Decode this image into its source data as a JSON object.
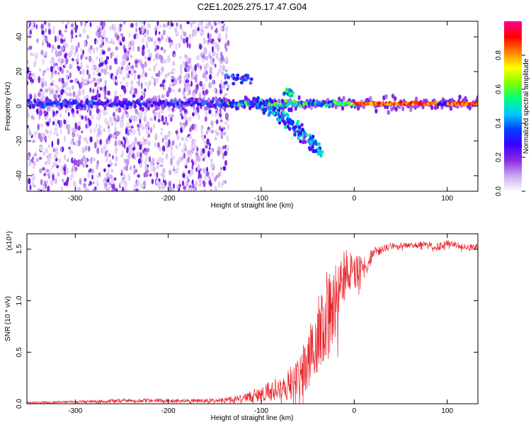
{
  "title": "C2E1.2025.275.17.47.G04",
  "chart_data": [
    {
      "type": "heatmap",
      "panel": "spectrogram",
      "xlabel": "Height of straight line (km)",
      "ylabel": "Frequency (Hz)",
      "xlim": [
        -352,
        133
      ],
      "ylim": [
        -49,
        49
      ],
      "xticks": [
        -300,
        -200,
        -100,
        0,
        100
      ],
      "xtick_labels": [
        "-300",
        "-200",
        "-100",
        "0",
        "100"
      ],
      "yticks": [
        -40,
        -20,
        0,
        20,
        40
      ],
      "ytick_labels": [
        "-40",
        "-20",
        "0",
        "20",
        "40"
      ],
      "colorbar": {
        "label": "Normalized spectral amplitude",
        "range": [
          0,
          1
        ],
        "ticks": [
          0.0,
          0.2,
          0.4,
          0.6,
          0.8
        ],
        "tick_labels": [
          "0.0",
          "0.2",
          "0.4",
          "0.6",
          "0.8"
        ],
        "colormap": [
          "#ffffff",
          "#c9a8f0",
          "#8a2be2",
          "#3b00ff",
          "#0040ff",
          "#00c8ff",
          "#00ff80",
          "#80ff00",
          "#ffff00",
          "#ff8000",
          "#ff0000",
          "#ff0090"
        ]
      },
      "features": {
        "noise_region_x": [
          -352,
          -135
        ],
        "carrier_frequency_hz": 1.5,
        "upper_echo": {
          "x": [
            -140,
            -110
          ],
          "freq": [
            13,
            18
          ]
        },
        "descending_branch": {
          "x": [
            -110,
            -35
          ],
          "freq": [
            2,
            -28
          ]
        },
        "strong_carrier_x": [
          -20,
          133
        ]
      }
    },
    {
      "type": "line",
      "panel": "snr",
      "xlabel": "Height of straight line (km)",
      "ylabel": "SNR (10 * v/v)",
      "multiplier": "(x10⁴)",
      "xlim": [
        -352,
        133
      ],
      "ylim": [
        0,
        1.65
      ],
      "xticks": [
        -300,
        -200,
        -100,
        0,
        100
      ],
      "xtick_labels": [
        "-300",
        "-200",
        "-100",
        "0",
        "100"
      ],
      "yticks": [
        0.0,
        0.5,
        1.0,
        1.5
      ],
      "ytick_labels": [
        "0.0",
        "0.5",
        "1.0",
        "1.5"
      ],
      "color": "#e8242b",
      "envelope": {
        "x": [
          -352,
          -300,
          -250,
          -200,
          -150,
          -120,
          -100,
          -80,
          -70,
          -60,
          -50,
          -40,
          -30,
          -20,
          -10,
          0,
          10,
          20,
          30,
          40,
          60,
          80,
          90,
          100,
          120,
          133
        ],
        "mean": [
          0.01,
          0.02,
          0.03,
          0.03,
          0.03,
          0.05,
          0.1,
          0.15,
          0.2,
          0.25,
          0.4,
          0.6,
          0.85,
          1.0,
          1.25,
          1.3,
          1.3,
          1.45,
          1.5,
          1.53,
          1.54,
          1.55,
          1.52,
          1.56,
          1.52,
          1.52
        ],
        "spread": [
          0.01,
          0.01,
          0.02,
          0.02,
          0.02,
          0.04,
          0.08,
          0.12,
          0.17,
          0.22,
          0.3,
          0.4,
          0.45,
          0.35,
          0.25,
          0.2,
          0.12,
          0.06,
          0.04,
          0.03,
          0.03,
          0.03,
          0.04,
          0.03,
          0.03,
          0.03
        ]
      }
    }
  ]
}
